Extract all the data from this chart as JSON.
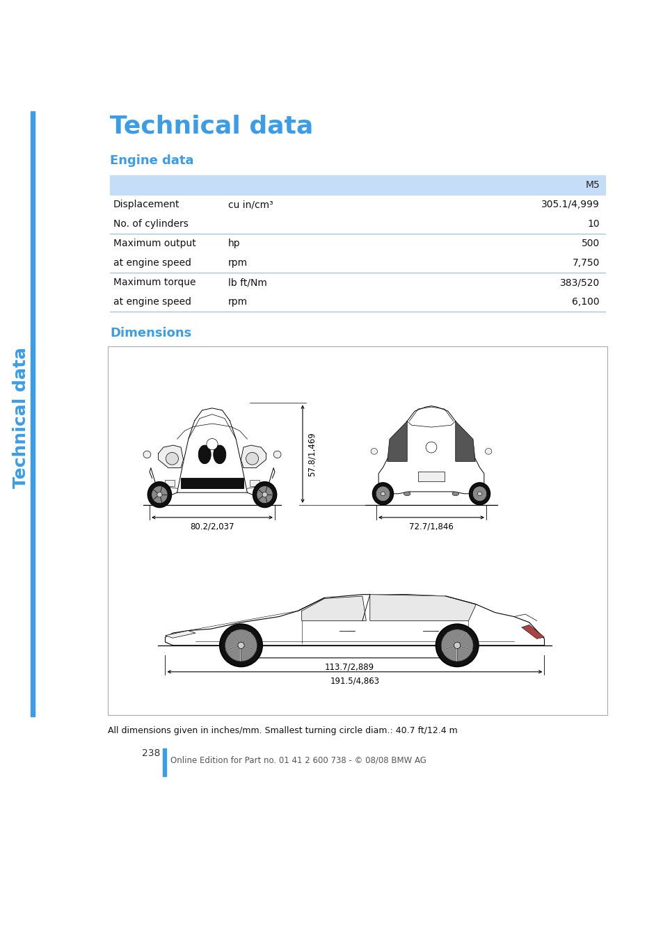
{
  "title": "Technical data",
  "sidebar_text": "Technical data",
  "section1": "Engine data",
  "section2": "Dimensions",
  "header_color": "#c5ddf7",
  "blue_color": "#3b9de8",
  "table_header": "M5",
  "table_rows": [
    {
      "label": "Displacement",
      "unit": "cu in/cm³",
      "value": "305.1/4,999",
      "border_top": false
    },
    {
      "label": "No. of cylinders",
      "unit": "",
      "value": "10",
      "border_top": false
    },
    {
      "label": "Maximum output",
      "unit": "hp",
      "value": "500",
      "border_top": true
    },
    {
      "label": "at engine speed",
      "unit": "rpm",
      "value": "7,750",
      "border_top": false
    },
    {
      "label": "Maximum torque",
      "unit": "lb ft/Nm",
      "value": "383/520",
      "border_top": true
    },
    {
      "label": "at engine speed",
      "unit": "rpm",
      "value": "6,100",
      "border_top": false
    }
  ],
  "footer_note": "All dimensions given in inches/mm. Smallest turning circle diam.: 40.7 ft/12.4 m",
  "page_number": "238",
  "footer_text": "Online Edition for Part no. 01 41 2 600 738 - © 08/08 BMW AG",
  "dim_front_width": "80.2/2,037",
  "dim_rear_width": "72.7/1,846",
  "dim_height": "57.8/1,469",
  "dim_wheelbase": "113.7/2,889",
  "dim_length": "191.5/4,863"
}
